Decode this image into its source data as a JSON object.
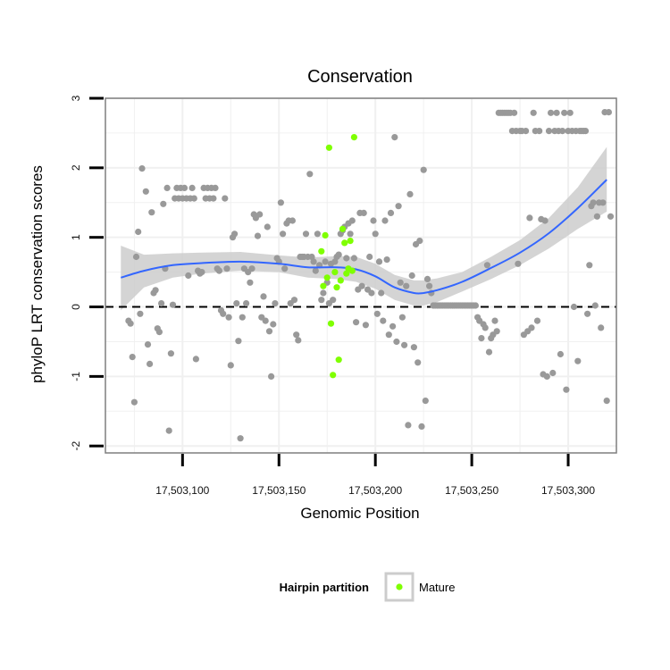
{
  "chart_data": {
    "type": "scatter",
    "title": "Conservation",
    "xlabel": "Genomic Position",
    "ylabel": "phyloP LRT conservation scores",
    "xlim": [
      17503060,
      17503325
    ],
    "ylim": [
      -2.1,
      3.0
    ],
    "x_ticks": [
      17503100,
      17503150,
      17503200,
      17503250,
      17503300
    ],
    "x_tick_labels": [
      "17,503,100",
      "17,503,150",
      "17,503,200",
      "17,503,250",
      "17,503,300"
    ],
    "y_ticks": [
      -2,
      -1,
      0,
      1,
      2,
      3
    ],
    "y_tick_labels": [
      "-2",
      "-1",
      "0",
      "1",
      "2",
      "3"
    ],
    "grid": true,
    "reference_line": {
      "y": 0,
      "style": "dashed"
    },
    "legend": {
      "position": "bottom",
      "title": "Hairpin partition",
      "entries": [
        {
          "label": "Mature",
          "color": "#7fff00"
        }
      ]
    },
    "series": [
      {
        "color": "#999999",
        "points": [
          [
            17503072,
            -0.2
          ],
          [
            17503073,
            -0.24
          ],
          [
            17503074,
            -0.72
          ],
          [
            17503075,
            -1.37
          ],
          [
            17503076,
            0.72
          ],
          [
            17503077,
            1.08
          ],
          [
            17503078,
            -0.1
          ],
          [
            17503079,
            1.99
          ],
          [
            17503081,
            1.66
          ],
          [
            17503082,
            -0.54
          ],
          [
            17503083,
            -0.82
          ],
          [
            17503084,
            1.36
          ],
          [
            17503085,
            0.2
          ],
          [
            17503086,
            0.24
          ],
          [
            17503087,
            -0.31
          ],
          [
            17503088,
            -0.36
          ],
          [
            17503089,
            0.05
          ],
          [
            17503090,
            1.48
          ],
          [
            17503091,
            0.55
          ],
          [
            17503092,
            1.71
          ],
          [
            17503093,
            -1.78
          ],
          [
            17503094,
            -0.67
          ],
          [
            17503095,
            0.03
          ],
          [
            17503096,
            1.56
          ],
          [
            17503097,
            1.71
          ],
          [
            17503098,
            1.56
          ],
          [
            17503099,
            1.71
          ],
          [
            17503100,
            1.56
          ],
          [
            17503101,
            1.71
          ],
          [
            17503102,
            1.56
          ],
          [
            17503103,
            0.45
          ],
          [
            17503104,
            1.56
          ],
          [
            17503105,
            1.71
          ],
          [
            17503106,
            1.56
          ],
          [
            17503107,
            -0.75
          ],
          [
            17503108,
            0.52
          ],
          [
            17503109,
            0.48
          ],
          [
            17503110,
            0.5
          ],
          [
            17503111,
            1.71
          ],
          [
            17503112,
            1.56
          ],
          [
            17503113,
            1.71
          ],
          [
            17503114,
            1.56
          ],
          [
            17503115,
            1.71
          ],
          [
            17503116,
            1.56
          ],
          [
            17503117,
            1.71
          ],
          [
            17503118,
            0.55
          ],
          [
            17503119,
            0.52
          ],
          [
            17503120,
            -0.05
          ],
          [
            17503121,
            -0.1
          ],
          [
            17503122,
            1.56
          ],
          [
            17503123,
            0.55
          ],
          [
            17503124,
            -0.15
          ],
          [
            17503125,
            -0.84
          ],
          [
            17503126,
            1.0
          ],
          [
            17503127,
            1.05
          ],
          [
            17503128,
            0.05
          ],
          [
            17503129,
            -0.49
          ],
          [
            17503130,
            -1.89
          ],
          [
            17503131,
            -0.15
          ],
          [
            17503132,
            0.55
          ],
          [
            17503133,
            0.05
          ],
          [
            17503134,
            0.5
          ],
          [
            17503135,
            0.35
          ],
          [
            17503136,
            0.55
          ],
          [
            17503137,
            1.33
          ],
          [
            17503138,
            1.28
          ],
          [
            17503139,
            1.02
          ],
          [
            17503140,
            1.33
          ],
          [
            17503141,
            -0.15
          ],
          [
            17503142,
            0.15
          ],
          [
            17503143,
            -0.2
          ],
          [
            17503144,
            1.15
          ],
          [
            17503145,
            -0.35
          ],
          [
            17503146,
            -1.0
          ],
          [
            17503147,
            -0.25
          ],
          [
            17503148,
            0.05
          ],
          [
            17503149,
            0.7
          ],
          [
            17503150,
            0.65
          ],
          [
            17503151,
            1.5
          ],
          [
            17503152,
            1.05
          ],
          [
            17503153,
            0.55
          ],
          [
            17503154,
            1.2
          ],
          [
            17503155,
            1.24
          ],
          [
            17503156,
            0.05
          ],
          [
            17503157,
            1.24
          ],
          [
            17503158,
            0.1
          ],
          [
            17503159,
            -0.4
          ],
          [
            17503160,
            -0.48
          ],
          [
            17503161,
            0.72
          ],
          [
            17503162,
            0.72
          ],
          [
            17503163,
            0.72
          ],
          [
            17503164,
            1.05
          ],
          [
            17503165,
            0.72
          ],
          [
            17503166,
            1.91
          ],
          [
            17503167,
            0.72
          ],
          [
            17503168,
            0.65
          ],
          [
            17503169,
            0.52
          ],
          [
            17503170,
            1.05
          ],
          [
            17503171,
            0.6
          ],
          [
            17503172,
            0.1
          ],
          [
            17503173,
            0.2
          ],
          [
            17503174,
            0.65
          ],
          [
            17503175,
            0.35
          ],
          [
            17503176,
            0.05
          ],
          [
            17503177,
            0.62
          ],
          [
            17503178,
            0.1
          ],
          [
            17503179,
            0.65
          ],
          [
            17503180,
            0.72
          ],
          [
            17503181,
            0.75
          ],
          [
            17503182,
            1.05
          ],
          [
            17503183,
            1.1
          ],
          [
            17503184,
            1.15
          ],
          [
            17503185,
            0.7
          ],
          [
            17503186,
            1.2
          ],
          [
            17503187,
            1.05
          ],
          [
            17503188,
            1.24
          ],
          [
            17503189,
            0.7
          ],
          [
            17503190,
            -0.22
          ],
          [
            17503191,
            0.25
          ],
          [
            17503192,
            1.35
          ],
          [
            17503193,
            0.3
          ],
          [
            17503194,
            1.35
          ],
          [
            17503195,
            -0.26
          ],
          [
            17503196,
            0.25
          ],
          [
            17503197,
            0.72
          ],
          [
            17503198,
            0.2
          ],
          [
            17503199,
            1.24
          ],
          [
            17503200,
            1.05
          ],
          [
            17503201,
            -0.1
          ],
          [
            17503202,
            0.65
          ],
          [
            17503203,
            0.2
          ],
          [
            17503204,
            -0.2
          ],
          [
            17503205,
            1.24
          ],
          [
            17503206,
            0.68
          ],
          [
            17503207,
            -0.4
          ],
          [
            17503208,
            1.35
          ],
          [
            17503209,
            -0.28
          ],
          [
            17503210,
            2.44
          ],
          [
            17503211,
            -0.5
          ],
          [
            17503212,
            1.45
          ],
          [
            17503213,
            0.35
          ],
          [
            17503214,
            -0.15
          ],
          [
            17503215,
            -0.55
          ],
          [
            17503216,
            0.3
          ],
          [
            17503217,
            -1.7
          ],
          [
            17503218,
            1.62
          ],
          [
            17503219,
            0.45
          ],
          [
            17503220,
            -0.58
          ],
          [
            17503221,
            0.9
          ],
          [
            17503222,
            -0.8
          ],
          [
            17503223,
            0.95
          ],
          [
            17503224,
            -1.72
          ],
          [
            17503225,
            1.97
          ],
          [
            17503226,
            -1.35
          ],
          [
            17503227,
            0.4
          ],
          [
            17503228,
            0.3
          ],
          [
            17503229,
            0.2
          ],
          [
            17503230,
            0.02
          ],
          [
            17503231,
            0.02
          ],
          [
            17503232,
            0.02
          ],
          [
            17503233,
            0.02
          ],
          [
            17503234,
            0.02
          ],
          [
            17503235,
            0.02
          ],
          [
            17503236,
            0.02
          ],
          [
            17503237,
            0.02
          ],
          [
            17503238,
            0.02
          ],
          [
            17503239,
            0.02
          ],
          [
            17503240,
            0.02
          ],
          [
            17503241,
            0.02
          ],
          [
            17503242,
            0.02
          ],
          [
            17503243,
            0.02
          ],
          [
            17503244,
            0.02
          ],
          [
            17503245,
            0.02
          ],
          [
            17503246,
            0.02
          ],
          [
            17503247,
            0.02
          ],
          [
            17503248,
            0.02
          ],
          [
            17503249,
            0.02
          ],
          [
            17503250,
            0.02
          ],
          [
            17503251,
            0.02
          ],
          [
            17503252,
            0.02
          ],
          [
            17503253,
            -0.15
          ],
          [
            17503254,
            -0.2
          ],
          [
            17503255,
            -0.45
          ],
          [
            17503256,
            -0.25
          ],
          [
            17503257,
            -0.3
          ],
          [
            17503258,
            0.6
          ],
          [
            17503259,
            -0.65
          ],
          [
            17503260,
            -0.45
          ],
          [
            17503261,
            -0.4
          ],
          [
            17503262,
            -0.2
          ],
          [
            17503263,
            -0.35
          ],
          [
            17503264,
            2.79
          ],
          [
            17503265,
            2.79
          ],
          [
            17503266,
            2.79
          ],
          [
            17503267,
            2.79
          ],
          [
            17503268,
            2.79
          ],
          [
            17503269,
            2.79
          ],
          [
            17503270,
            2.79
          ],
          [
            17503271,
            2.53
          ],
          [
            17503272,
            2.79
          ],
          [
            17503273,
            2.53
          ],
          [
            17503274,
            0.62
          ],
          [
            17503275,
            2.53
          ],
          [
            17503276,
            2.53
          ],
          [
            17503277,
            -0.4
          ],
          [
            17503278,
            2.53
          ],
          [
            17503279,
            -0.35
          ],
          [
            17503280,
            1.28
          ],
          [
            17503281,
            -0.3
          ],
          [
            17503282,
            2.79
          ],
          [
            17503283,
            2.53
          ],
          [
            17503284,
            -0.2
          ],
          [
            17503285,
            2.53
          ],
          [
            17503286,
            1.26
          ],
          [
            17503287,
            -0.97
          ],
          [
            17503288,
            1.24
          ],
          [
            17503289,
            -1.0
          ],
          [
            17503290,
            2.53
          ],
          [
            17503291,
            2.79
          ],
          [
            17503292,
            -0.95
          ],
          [
            17503293,
            2.53
          ],
          [
            17503294,
            2.79
          ],
          [
            17503295,
            2.53
          ],
          [
            17503296,
            -0.68
          ],
          [
            17503297,
            2.53
          ],
          [
            17503298,
            2.79
          ],
          [
            17503299,
            -1.19
          ],
          [
            17503300,
            2.53
          ],
          [
            17503301,
            2.79
          ],
          [
            17503302,
            2.53
          ],
          [
            17503303,
            0.0
          ],
          [
            17503304,
            2.53
          ],
          [
            17503305,
            -0.78
          ],
          [
            17503306,
            2.53
          ],
          [
            17503307,
            2.53
          ],
          [
            17503308,
            2.53
          ],
          [
            17503309,
            2.53
          ],
          [
            17503310,
            -0.1
          ],
          [
            17503311,
            0.6
          ],
          [
            17503312,
            1.45
          ],
          [
            17503313,
            1.5
          ],
          [
            17503314,
            0.02
          ],
          [
            17503315,
            1.3
          ],
          [
            17503316,
            1.5
          ],
          [
            17503317,
            -0.3
          ],
          [
            17503318,
            1.5
          ],
          [
            17503319,
            2.8
          ],
          [
            17503320,
            -1.35
          ],
          [
            17503321,
            2.8
          ],
          [
            17503322,
            1.3
          ]
        ]
      },
      {
        "name": "Mature",
        "color": "#7fff00",
        "points": [
          [
            17503172,
            0.8
          ],
          [
            17503173,
            0.3
          ],
          [
            17503174,
            1.03
          ],
          [
            17503175,
            0.42
          ],
          [
            17503176,
            2.29
          ],
          [
            17503177,
            -0.24
          ],
          [
            17503178,
            -0.98
          ],
          [
            17503179,
            0.5
          ],
          [
            17503180,
            0.28
          ],
          [
            17503181,
            -0.76
          ],
          [
            17503182,
            0.38
          ],
          [
            17503183,
            1.12
          ],
          [
            17503184,
            0.92
          ],
          [
            17503185,
            0.48
          ],
          [
            17503186,
            0.55
          ],
          [
            17503187,
            0.95
          ],
          [
            17503188,
            0.52
          ],
          [
            17503189,
            2.44
          ]
        ]
      }
    ],
    "smooth": {
      "color": "#3366ff",
      "ribbon_color": "#cccccc",
      "x": [
        17503068,
        17503080,
        17503095,
        17503110,
        17503130,
        17503150,
        17503165,
        17503180,
        17503190,
        17503200,
        17503210,
        17503220,
        17503225,
        17503232,
        17503245,
        17503260,
        17503275,
        17503290,
        17503305,
        17503320
      ],
      "y": [
        0.42,
        0.52,
        0.6,
        0.63,
        0.65,
        0.62,
        0.57,
        0.57,
        0.54,
        0.44,
        0.28,
        0.2,
        0.2,
        0.24,
        0.36,
        0.56,
        0.78,
        1.06,
        1.42,
        1.83
      ],
      "ymin": [
        -0.05,
        0.28,
        0.42,
        0.48,
        0.52,
        0.5,
        0.42,
        0.4,
        0.36,
        0.26,
        0.1,
        0.02,
        0.02,
        0.07,
        0.22,
        0.4,
        0.6,
        0.84,
        1.12,
        1.37
      ],
      "ymax": [
        0.88,
        0.75,
        0.77,
        0.78,
        0.79,
        0.74,
        0.71,
        0.73,
        0.72,
        0.62,
        0.46,
        0.38,
        0.38,
        0.41,
        0.5,
        0.72,
        0.96,
        1.28,
        1.72,
        2.3
      ]
    }
  }
}
